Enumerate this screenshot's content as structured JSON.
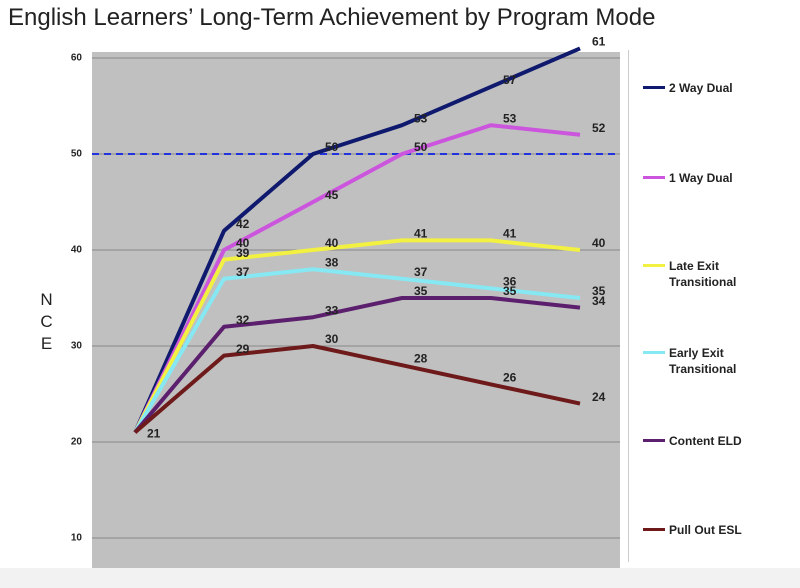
{
  "chart_data": {
    "type": "line",
    "title": "English Learners’ Long-Term Achievement by Program Mode",
    "y_label": "NCE",
    "categories": [
      null,
      null,
      null,
      null,
      null,
      null
    ],
    "series": [
      {
        "name": "2 Way Dual",
        "color": "#0f1a6e",
        "values": [
          21,
          42,
          50,
          53,
          57,
          61
        ]
      },
      {
        "name": "1 Way Dual",
        "color": "#cc55dd",
        "values": [
          21,
          40,
          45,
          50,
          53,
          52
        ]
      },
      {
        "name": "Late Exit Transitional",
        "color": "#f2f040",
        "values": [
          21,
          39,
          40,
          41,
          41,
          40
        ]
      },
      {
        "name": "Early Exit Transitional",
        "color": "#86e8f2",
        "values": [
          21,
          37,
          38,
          37,
          36,
          35
        ]
      },
      {
        "name": "Content ELD",
        "color": "#5c1f6e",
        "values": [
          21,
          32,
          33,
          35,
          35,
          34
        ]
      },
      {
        "name": "Pull Out ESL",
        "color": "#6e1a1a",
        "values": [
          21,
          29,
          30,
          28,
          26,
          24
        ]
      }
    ],
    "reference_line": 50,
    "ylim": [
      8,
      60
    ],
    "yticks": [
      10,
      20,
      30,
      40,
      50,
      60
    ],
    "grid": true
  }
}
